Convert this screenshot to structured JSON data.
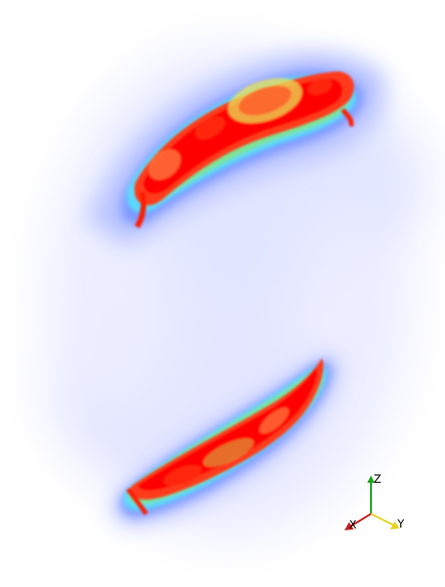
{
  "scene": {
    "background": "#ffffff",
    "colormap": [
      "#ecedff",
      "#c9d0ff",
      "#6f8cff",
      "#58d9ff",
      "#76e69a",
      "#c9d94a",
      "#ff4a22",
      "#ff0000"
    ]
  },
  "orientation_axes": {
    "z_label": "Z",
    "x_label": "X",
    "y_label": "Y",
    "z_color": "#1aa51a",
    "x_color": "#c81e1e",
    "y_color": "#e6d21e"
  }
}
